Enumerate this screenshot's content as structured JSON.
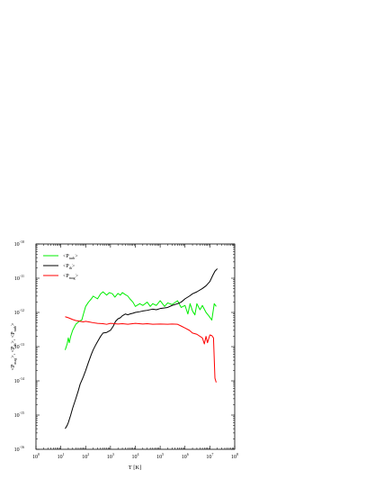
{
  "chart_data": {
    "type": "line",
    "title": "",
    "xlabel": "T [K]",
    "ylabel": "<P_mag>, <P_th>, <P_turb>",
    "xscale": "log",
    "yscale": "log",
    "xlim": [
      1,
      100000000
    ],
    "ylim": [
      1e-16,
      1e-10
    ],
    "x_tick_labels": [
      {
        "base": "10",
        "exp": "0"
      },
      {
        "base": "10",
        "exp": "1"
      },
      {
        "base": "10",
        "exp": "2"
      },
      {
        "base": "10",
        "exp": "3"
      },
      {
        "base": "10",
        "exp": "4"
      },
      {
        "base": "10",
        "exp": "5"
      },
      {
        "base": "10",
        "exp": "6"
      },
      {
        "base": "10",
        "exp": "7"
      },
      {
        "base": "10",
        "exp": "8"
      }
    ],
    "y_tick_labels": [
      {
        "base": "10",
        "exp": "-16"
      },
      {
        "base": "10",
        "exp": "-15"
      },
      {
        "base": "10",
        "exp": "-14"
      },
      {
        "base": "10",
        "exp": "-13"
      },
      {
        "base": "10",
        "exp": "-12"
      },
      {
        "base": "10",
        "exp": "-11"
      },
      {
        "base": "10",
        "exp": "-10"
      }
    ],
    "legend_position": "top-left",
    "grid": false,
    "series": [
      {
        "name": "<P_turb>",
        "legend_main": "<P",
        "legend_sub": "turb",
        "color": "#00ee00",
        "points": [
          [
            15,
            8e-14
          ],
          [
            18,
            1.2e-13
          ],
          [
            20,
            1.8e-13
          ],
          [
            22,
            1.3e-13
          ],
          [
            25,
            2e-13
          ],
          [
            30,
            3e-13
          ],
          [
            40,
            4.5e-13
          ],
          [
            55,
            5.5e-13
          ],
          [
            70,
            6e-13
          ],
          [
            85,
            1e-12
          ],
          [
            100,
            1.5e-12
          ],
          [
            130,
            2e-12
          ],
          [
            170,
            2.5e-12
          ],
          [
            200,
            3e-12
          ],
          [
            300,
            2.5e-12
          ],
          [
            400,
            3.5e-12
          ],
          [
            500,
            4e-12
          ],
          [
            700,
            3.2e-12
          ],
          [
            900,
            3.8e-12
          ],
          [
            1200,
            3.5e-12
          ],
          [
            1500,
            2.8e-12
          ],
          [
            2000,
            3.6e-12
          ],
          [
            2500,
            3.2e-12
          ],
          [
            3000,
            3.8e-12
          ],
          [
            4000,
            3.3e-12
          ],
          [
            5000,
            3e-12
          ],
          [
            6000,
            2.5e-12
          ],
          [
            8000,
            2e-12
          ],
          [
            10000,
            1.5e-12
          ],
          [
            15000,
            1.8e-12
          ],
          [
            20000,
            1.6e-12
          ],
          [
            30000,
            2e-12
          ],
          [
            40000,
            1.5e-12
          ],
          [
            50000,
            1.8e-12
          ],
          [
            70000,
            1.6e-12
          ],
          [
            100000,
            2.2e-12
          ],
          [
            150000,
            1.5e-12
          ],
          [
            200000,
            1.9e-12
          ],
          [
            300000,
            1.7e-12
          ],
          [
            500000,
            2.2e-12
          ],
          [
            700000,
            1.4e-12
          ],
          [
            1000000,
            1.6e-12
          ],
          [
            1300000,
            9e-13
          ],
          [
            1600000,
            1.8e-12
          ],
          [
            2000000,
            1.1e-12
          ],
          [
            2500000,
            8.5e-13
          ],
          [
            3000000,
            1.8e-12
          ],
          [
            4000000,
            1.2e-12
          ],
          [
            5000000,
            1.6e-12
          ],
          [
            7000000,
            1e-12
          ],
          [
            9000000,
            8e-13
          ],
          [
            12000000,
            6e-13
          ],
          [
            15000000,
            1.8e-12
          ],
          [
            18000000,
            1.5e-12
          ]
        ]
      },
      {
        "name": "<P_th>",
        "legend_main": "<P",
        "legend_sub": "th",
        "color": "#000000",
        "points": [
          [
            15,
            4e-16
          ],
          [
            18,
            5e-16
          ],
          [
            20,
            6e-16
          ],
          [
            25,
            1e-15
          ],
          [
            30,
            1.6e-15
          ],
          [
            40,
            3e-15
          ],
          [
            50,
            5e-15
          ],
          [
            60,
            8e-15
          ],
          [
            80,
            1.3e-14
          ],
          [
            100,
            2e-14
          ],
          [
            130,
            3.5e-14
          ],
          [
            170,
            6e-14
          ],
          [
            200,
            8e-14
          ],
          [
            250,
            1.1e-13
          ],
          [
            300,
            1.4e-13
          ],
          [
            400,
            2e-13
          ],
          [
            500,
            2.5e-13
          ],
          [
            700,
            2.6e-13
          ],
          [
            1000,
            3e-13
          ],
          [
            1300,
            4e-13
          ],
          [
            1600,
            5.5e-13
          ],
          [
            2000,
            6.5e-13
          ],
          [
            2500,
            7e-13
          ],
          [
            3000,
            8e-13
          ],
          [
            4000,
            9e-13
          ],
          [
            5000,
            8.5e-13
          ],
          [
            6000,
            9e-13
          ],
          [
            8000,
            9.5e-13
          ],
          [
            10000,
            1e-12
          ],
          [
            15000,
            1.05e-12
          ],
          [
            20000,
            1.1e-12
          ],
          [
            30000,
            1.15e-12
          ],
          [
            50000,
            1.25e-12
          ],
          [
            70000,
            1.2e-12
          ],
          [
            100000,
            1.3e-12
          ],
          [
            150000,
            1.35e-12
          ],
          [
            200000,
            1.4e-12
          ],
          [
            300000,
            1.6e-12
          ],
          [
            500000,
            1.8e-12
          ],
          [
            700000,
            2e-12
          ],
          [
            1000000,
            2.5e-12
          ],
          [
            1500000,
            3e-12
          ],
          [
            2000000,
            3.5e-12
          ],
          [
            3000000,
            4e-12
          ],
          [
            5000000,
            5e-12
          ],
          [
            7000000,
            6e-12
          ],
          [
            10000000,
            8e-12
          ],
          [
            13000000,
            1.2e-11
          ],
          [
            16000000,
            1.6e-11
          ],
          [
            20000000,
            1.9e-11
          ]
        ]
      },
      {
        "name": "<P_mag>",
        "legend_main": "<P",
        "legend_sub": "mag",
        "color": "#ff0000",
        "points": [
          [
            15,
            7.5e-13
          ],
          [
            20,
            7e-13
          ],
          [
            30,
            6.2e-13
          ],
          [
            40,
            5.8e-13
          ],
          [
            60,
            5.5e-13
          ],
          [
            80,
            5.3e-13
          ],
          [
            100,
            5.5e-13
          ],
          [
            150,
            5.2e-13
          ],
          [
            200,
            5e-13
          ],
          [
            300,
            4.8e-13
          ],
          [
            500,
            4.7e-13
          ],
          [
            700,
            4.5e-13
          ],
          [
            1000,
            4.8e-13
          ],
          [
            2000,
            4.6e-13
          ],
          [
            3000,
            4.7e-13
          ],
          [
            5000,
            4.5e-13
          ],
          [
            10000,
            4.8e-13
          ],
          [
            20000,
            4.6e-13
          ],
          [
            30000,
            4.7e-13
          ],
          [
            50000,
            4.5e-13
          ],
          [
            100000,
            4.6e-13
          ],
          [
            200000,
            4.5e-13
          ],
          [
            300000,
            4.6e-13
          ],
          [
            500000,
            4.5e-13
          ],
          [
            700000,
            4e-13
          ],
          [
            1000000,
            3.5e-13
          ],
          [
            1500000,
            3e-13
          ],
          [
            2000000,
            2.5e-13
          ],
          [
            3000000,
            2.3e-13
          ],
          [
            5000000,
            1.8e-13
          ],
          [
            6000000,
            1.2e-13
          ],
          [
            7000000,
            2e-13
          ],
          [
            8000000,
            1.3e-13
          ],
          [
            10000000,
            2.2e-13
          ],
          [
            12000000,
            2.1e-13
          ],
          [
            14000000,
            1.8e-13
          ],
          [
            16000000,
            1.2e-14
          ],
          [
            18000000,
            9e-15
          ]
        ]
      }
    ]
  }
}
